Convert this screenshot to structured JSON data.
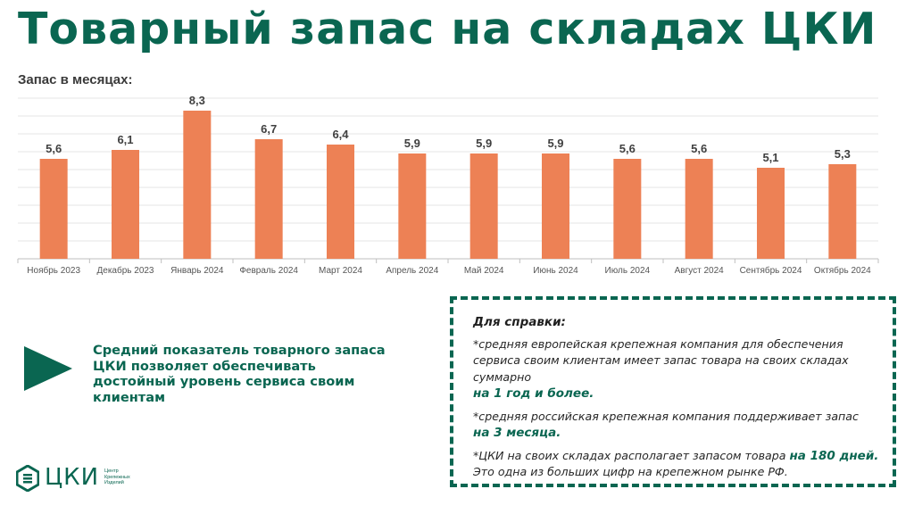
{
  "header": {
    "title": "Товарный запас на складах ЦКИ"
  },
  "chart_data": {
    "type": "bar",
    "ylabel": "Запас в месяцах:",
    "categories": [
      "Ноябрь 2023",
      "Декабрь 2023",
      "Январь 2024",
      "Февраль 2024",
      "Март 2024",
      "Апрель 2024",
      "Май 2024",
      "Июнь 2024",
      "Июль 2024",
      "Август 2024",
      "Сентябрь 2024",
      "Октябрь 2024"
    ],
    "values": [
      5.6,
      6.1,
      8.3,
      6.7,
      6.4,
      5.9,
      5.9,
      5.9,
      5.6,
      5.6,
      5.1,
      5.3
    ],
    "data_labels": [
      "5,6",
      "6,1",
      "8,3",
      "6,7",
      "6,4",
      "5,9",
      "5,9",
      "5,9",
      "5,6",
      "5,6",
      "5,1",
      "5,3"
    ],
    "ylim": [
      0,
      9
    ],
    "grid": true,
    "bar_color": "#ed8155"
  },
  "summary": {
    "text": "Средний показатель товарного запаса ЦКИ позволяет обеспечивать достойный уровень сервиса своим клиентам"
  },
  "note": {
    "heading": "Для справки:",
    "p1_text": "*средняя европейская крепежная компания для обеспечения сервиса своим клиентам имеет запас товара на своих складах суммарно",
    "p1_highlight": "на 1 год и более.",
    "p2_text": "*средняя российская крепежная компания поддерживает запас",
    "p2_highlight": "на 3 месяца.",
    "p3_text": "*ЦКИ на своих складах располагает запасом товара",
    "p3_highlight": "на 180 дней.",
    "p3_tail": "Это одна из больших цифр на крепежном рынке РФ."
  },
  "logo": {
    "wordmark": "ЦКИ",
    "subtitle_lines": [
      "Центр",
      "Крепежных",
      "Изделий"
    ]
  },
  "colors": {
    "brand": "#0a6651",
    "bar": "#ed8155",
    "grid": "#e6e6e6"
  }
}
